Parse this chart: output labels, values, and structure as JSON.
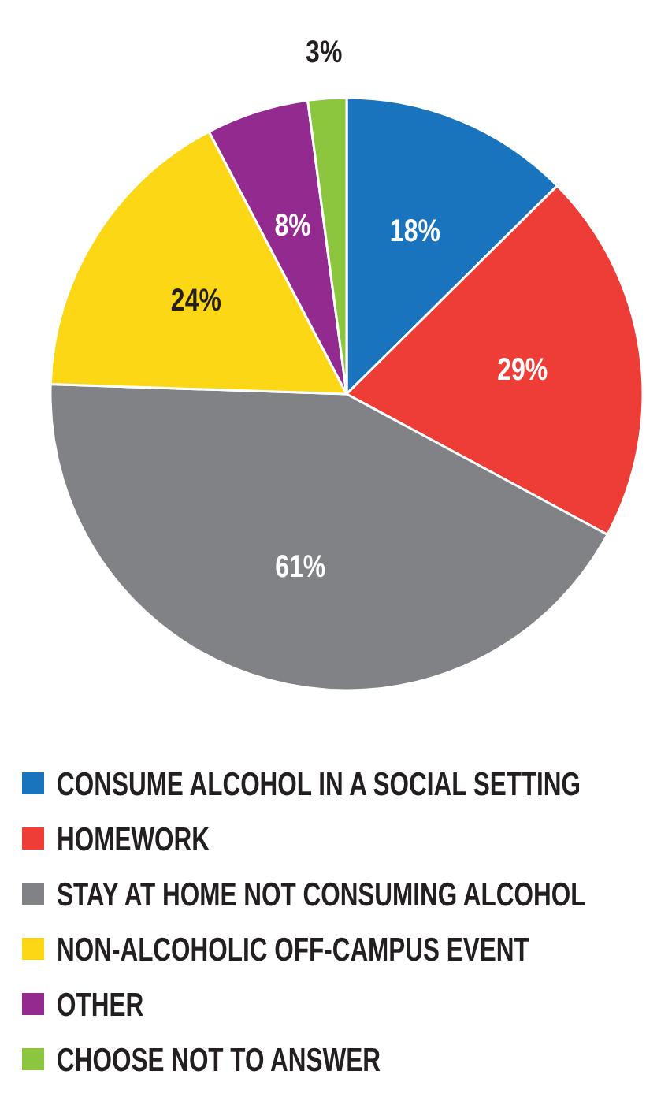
{
  "chart_data": {
    "type": "pie",
    "categories": [
      "CONSUME ALCOHOL IN A SOCIAL SETTING",
      "HOMEWORK",
      "STAY AT HOME NOT CONSUMING ALCOHOL",
      "NON-ALCOHOLIC OFF-CAMPUS EVENT",
      "OTHER",
      "CHOOSE NOT TO ANSWER"
    ],
    "values": [
      18,
      29,
      61,
      24,
      8,
      3
    ],
    "value_labels": [
      "18%",
      "29%",
      "61%",
      "24%",
      "8%",
      "3%"
    ],
    "colors": [
      "#1a74bd",
      "#ee3d37",
      "#818285",
      "#fcd716",
      "#922a8f",
      "#8cc63f"
    ],
    "legend": "bottom"
  }
}
